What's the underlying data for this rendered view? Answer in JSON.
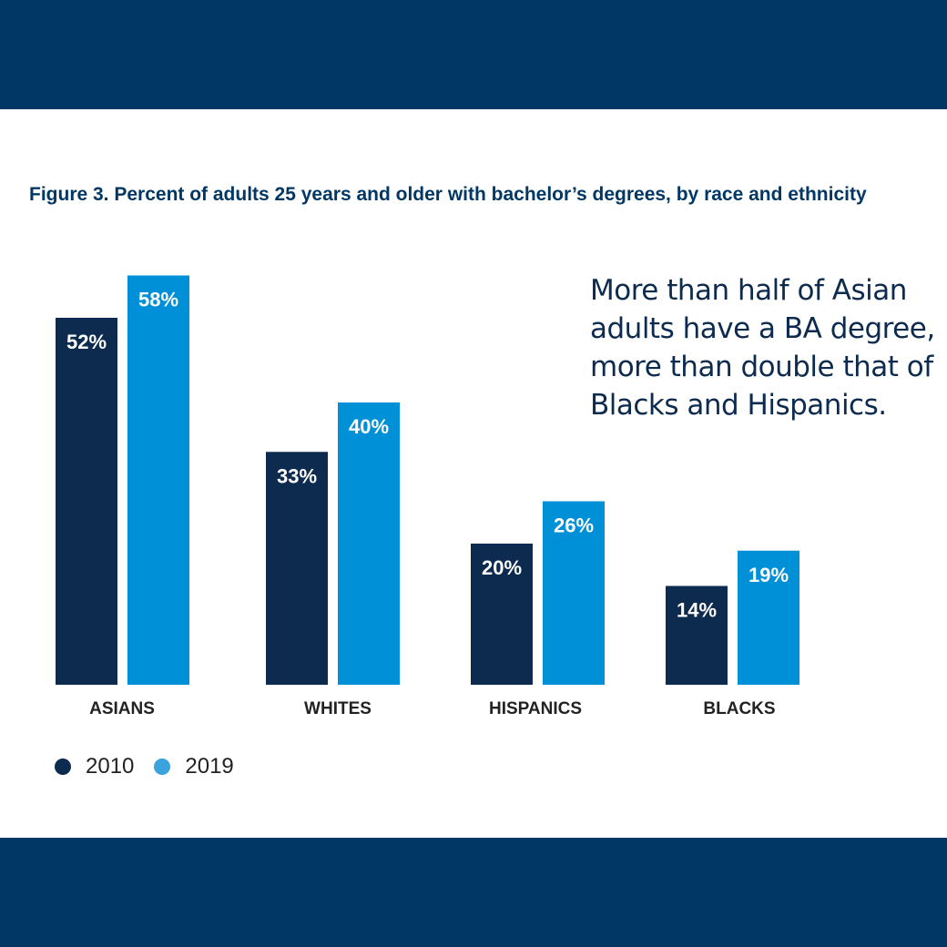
{
  "chart_data": {
    "type": "bar",
    "title": "Figure 3. Percent of adults 25 years and older with bachelor’s degrees, by race and ethnicity",
    "annotation": "More than half of Asian adults have a BA degree, more than double that of Blacks and Hispanics.",
    "categories": [
      "ASIANS",
      "WHITES",
      "HISPANICS",
      "BLACKS"
    ],
    "series": [
      {
        "name": "2010",
        "color": "#0d2b4f",
        "values": [
          52,
          33,
          20,
          14
        ],
        "labels": [
          "52%",
          "33%",
          "20%",
          "14%"
        ]
      },
      {
        "name": "2019",
        "color": "#0090d8",
        "values": [
          58,
          40,
          26,
          19
        ],
        "labels": [
          "58%",
          "40%",
          "26%",
          "19%"
        ]
      }
    ],
    "ylim": [
      0,
      60
    ],
    "grid": false,
    "legend_position": "bottom-left",
    "xlabel": "",
    "ylabel": ""
  },
  "colors": {
    "band": "#003764",
    "legend_dot_2019": "#3aa3dc"
  }
}
